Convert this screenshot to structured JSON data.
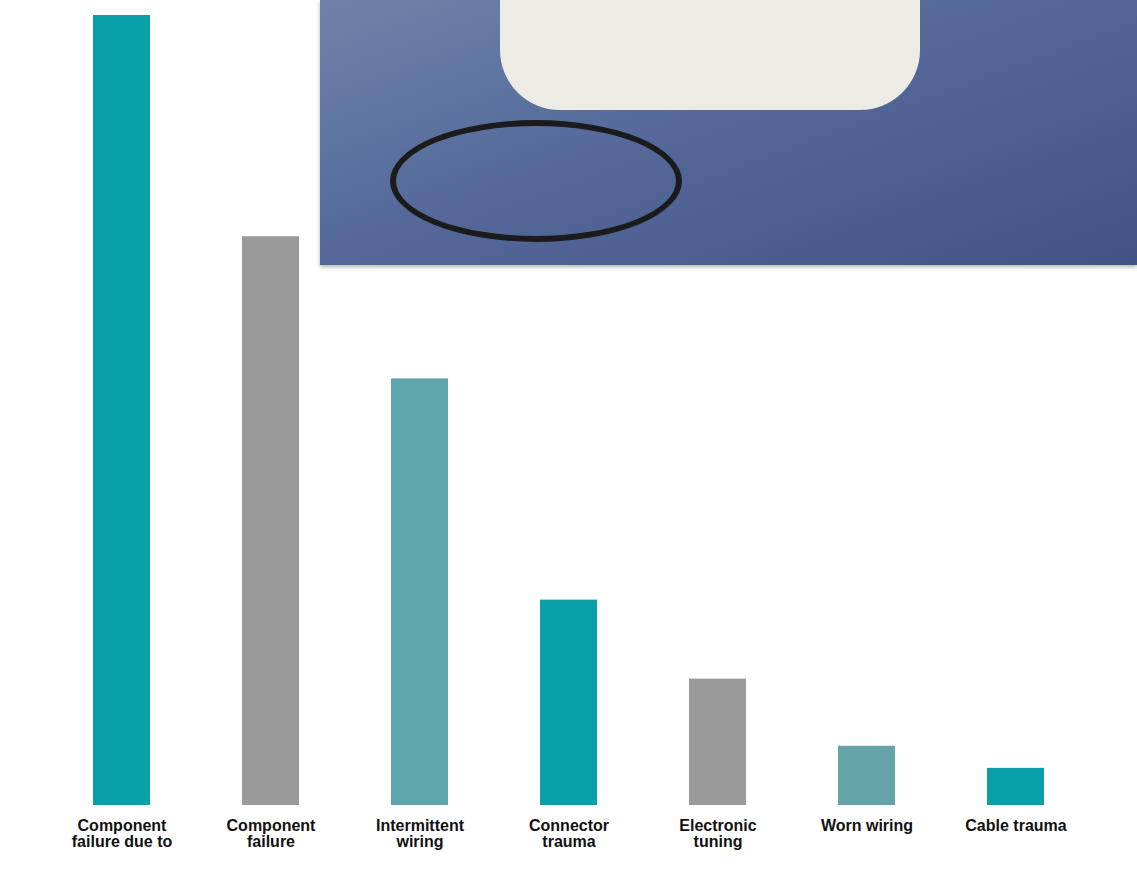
{
  "chart_data": {
    "type": "bar",
    "categories": [
      "Component failure due to",
      "Component failure",
      "Intermittent wiring",
      "Connector trauma",
      "Electronic tuning",
      "Worn wiring",
      "Cable trauma"
    ],
    "values": [
      100,
      72,
      54,
      26,
      16,
      7.5,
      4.7
    ],
    "colors": [
      "#0a9fa9",
      "#9a9a9a",
      "#5ea6ab",
      "#0a9fa9",
      "#9a9a9a",
      "#64a4a9",
      "#0a9fa9"
    ],
    "ylim": [
      0,
      100
    ],
    "yticks": [],
    "grid": false,
    "tick_labels": "x"
  }
}
